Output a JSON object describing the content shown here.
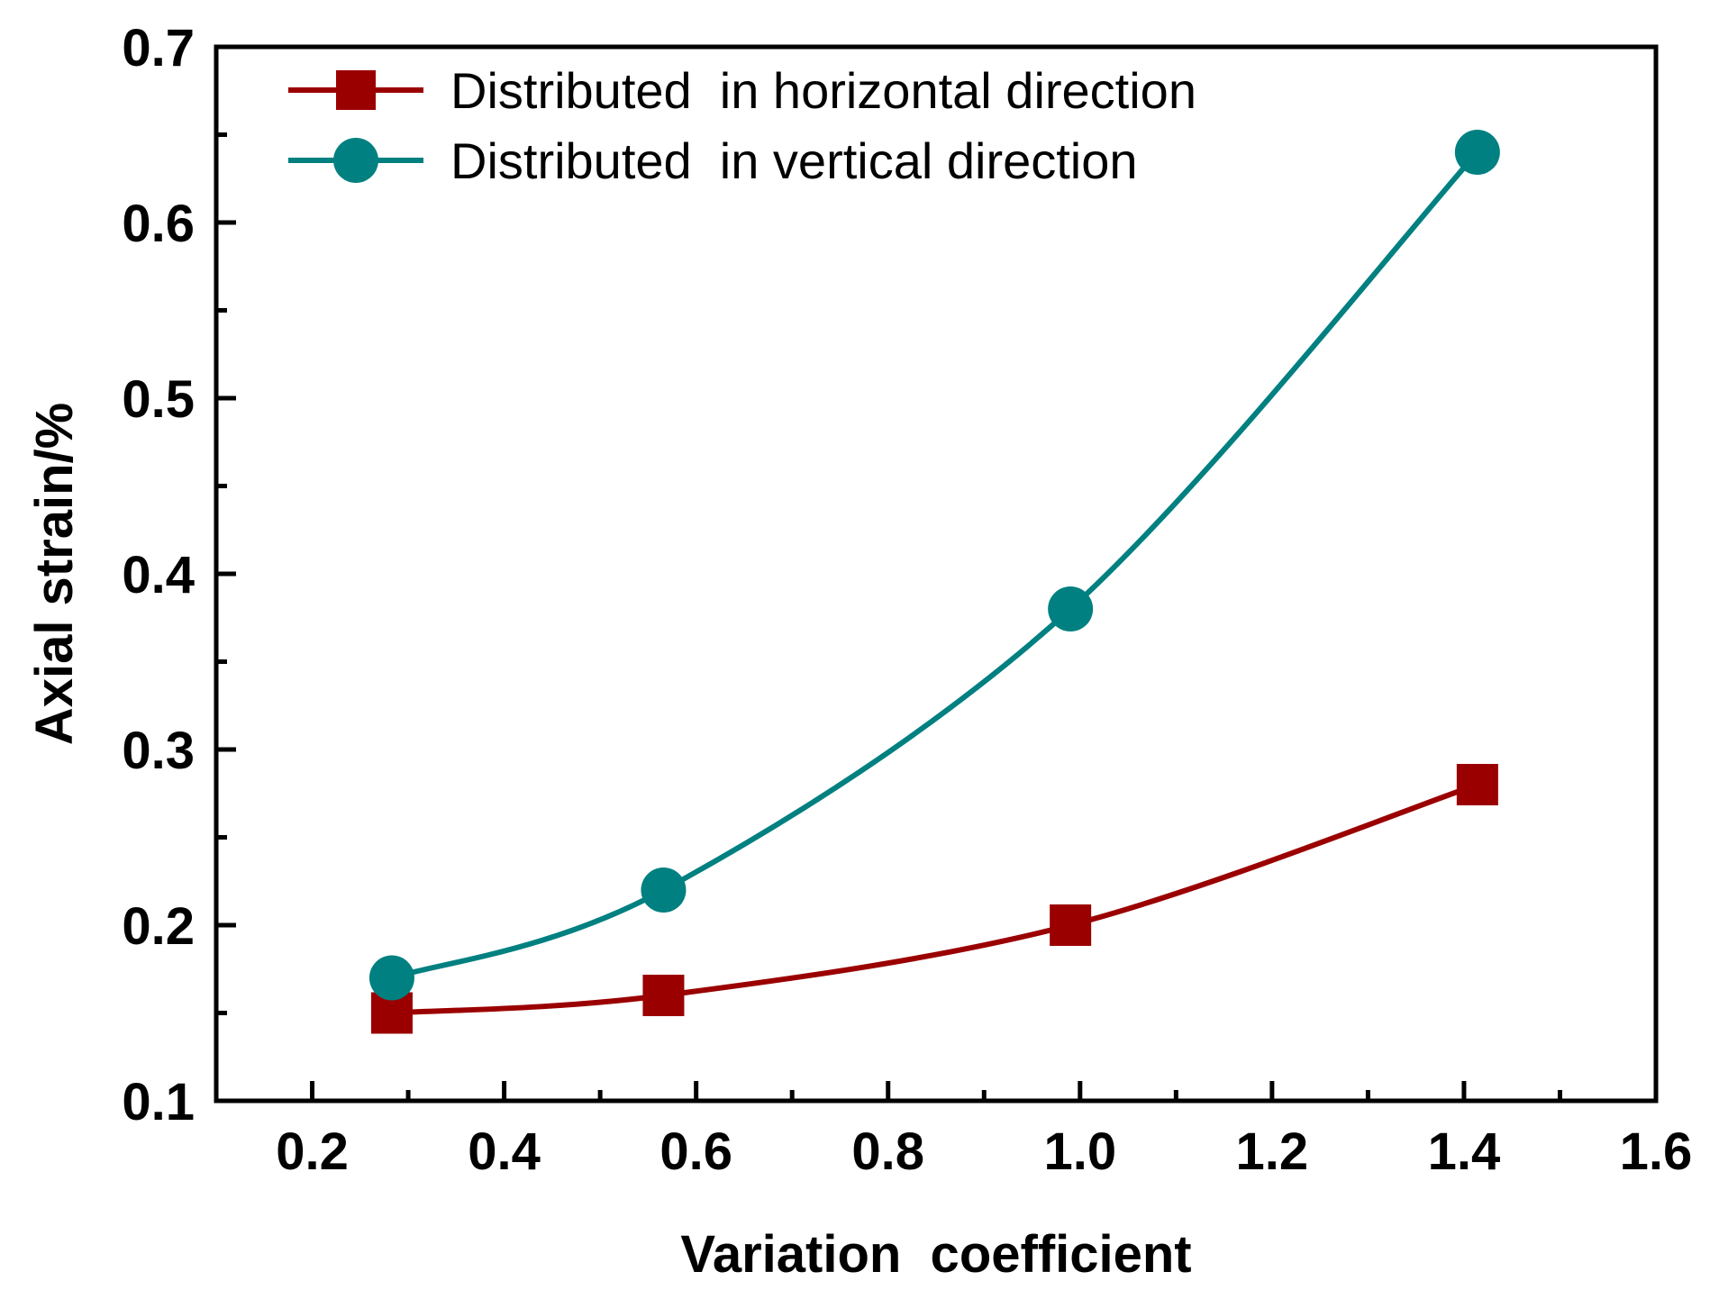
{
  "chart_data": {
    "type": "line",
    "title": "",
    "xlabel": "Variation  coefficient",
    "ylabel": "Axial strain/%",
    "xlim": [
      0.1,
      1.6
    ],
    "ylim": [
      0.1,
      0.7
    ],
    "xticks": [
      0.2,
      0.4,
      0.6,
      0.8,
      1.0,
      1.2,
      1.4,
      1.6
    ],
    "xtick_labels": [
      "0.2",
      "0.4",
      "0.6",
      "0.8",
      "1.0",
      "1.2",
      "1.4",
      "1.6"
    ],
    "yticks": [
      0.1,
      0.2,
      0.3,
      0.4,
      0.5,
      0.6,
      0.7
    ],
    "ytick_labels": [
      "0.1",
      "0.2",
      "0.3",
      "0.4",
      "0.5",
      "0.6",
      "0.7"
    ],
    "grid": false,
    "legend_position": "top-left",
    "x": [
      0.283,
      0.566,
      0.99,
      1.414
    ],
    "series": [
      {
        "name": "Distributed  in horizontal direction",
        "marker": "square",
        "color": "#9b0000",
        "values": [
          0.15,
          0.16,
          0.2,
          0.28
        ]
      },
      {
        "name": "Distributed  in vertical direction",
        "marker": "circle",
        "color": "#008080",
        "values": [
          0.17,
          0.22,
          0.38,
          0.64
        ]
      }
    ]
  }
}
